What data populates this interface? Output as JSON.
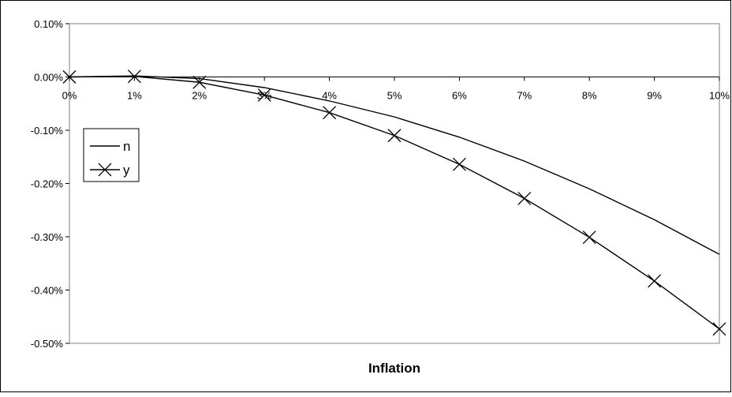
{
  "chart_data": {
    "type": "line",
    "title": "",
    "xlabel": "Inflation",
    "ylabel": "",
    "categories": [
      "0%",
      "1%",
      "2%",
      "3%",
      "4%",
      "5%",
      "6%",
      "7%",
      "8%",
      "9%",
      "10%"
    ],
    "x": [
      0,
      1,
      2,
      3,
      4,
      5,
      6,
      7,
      8,
      9,
      10
    ],
    "ylim": [
      -0.5,
      0.1
    ],
    "yticks": [
      0.1,
      0.0,
      -0.1,
      -0.2,
      -0.3,
      -0.4,
      -0.5
    ],
    "ytick_labels": [
      "0.10%",
      "0.00%",
      "-0.10%",
      "-0.20%",
      "-0.30%",
      "-0.40%",
      "-0.50%"
    ],
    "grid": false,
    "legend_position": "left",
    "series": [
      {
        "name": "n",
        "marker": "none",
        "color": "#000000",
        "values": [
          0.0,
          0.002,
          -0.003,
          -0.02,
          -0.045,
          -0.075,
          -0.113,
          -0.158,
          -0.21,
          -0.268,
          -0.333
        ]
      },
      {
        "name": "y",
        "marker": "x",
        "color": "#000000",
        "values": [
          0.0,
          0.001,
          -0.01,
          -0.034,
          -0.067,
          -0.11,
          -0.164,
          -0.228,
          -0.301,
          -0.383,
          -0.473
        ]
      }
    ]
  }
}
